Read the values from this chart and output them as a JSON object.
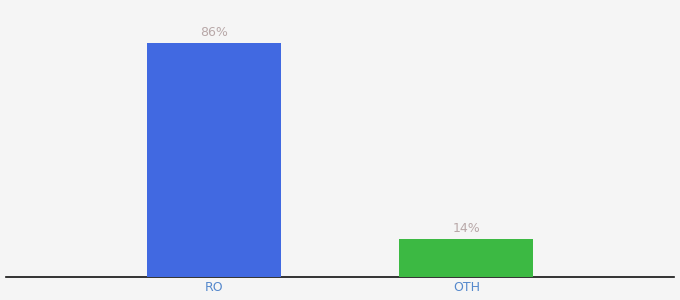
{
  "categories": [
    "RO",
    "OTH"
  ],
  "values": [
    86,
    14
  ],
  "bar_colors": [
    "#4169E1",
    "#3CB943"
  ],
  "label_color": "#b8a8a8",
  "label_fontsize": 9,
  "tick_fontsize": 9,
  "tick_color": "#5588cc",
  "background_color": "#f5f5f5",
  "ylim": [
    0,
    100
  ],
  "bar_width": 0.18,
  "spine_color": "#111111",
  "x_positions": [
    0.38,
    0.72
  ]
}
